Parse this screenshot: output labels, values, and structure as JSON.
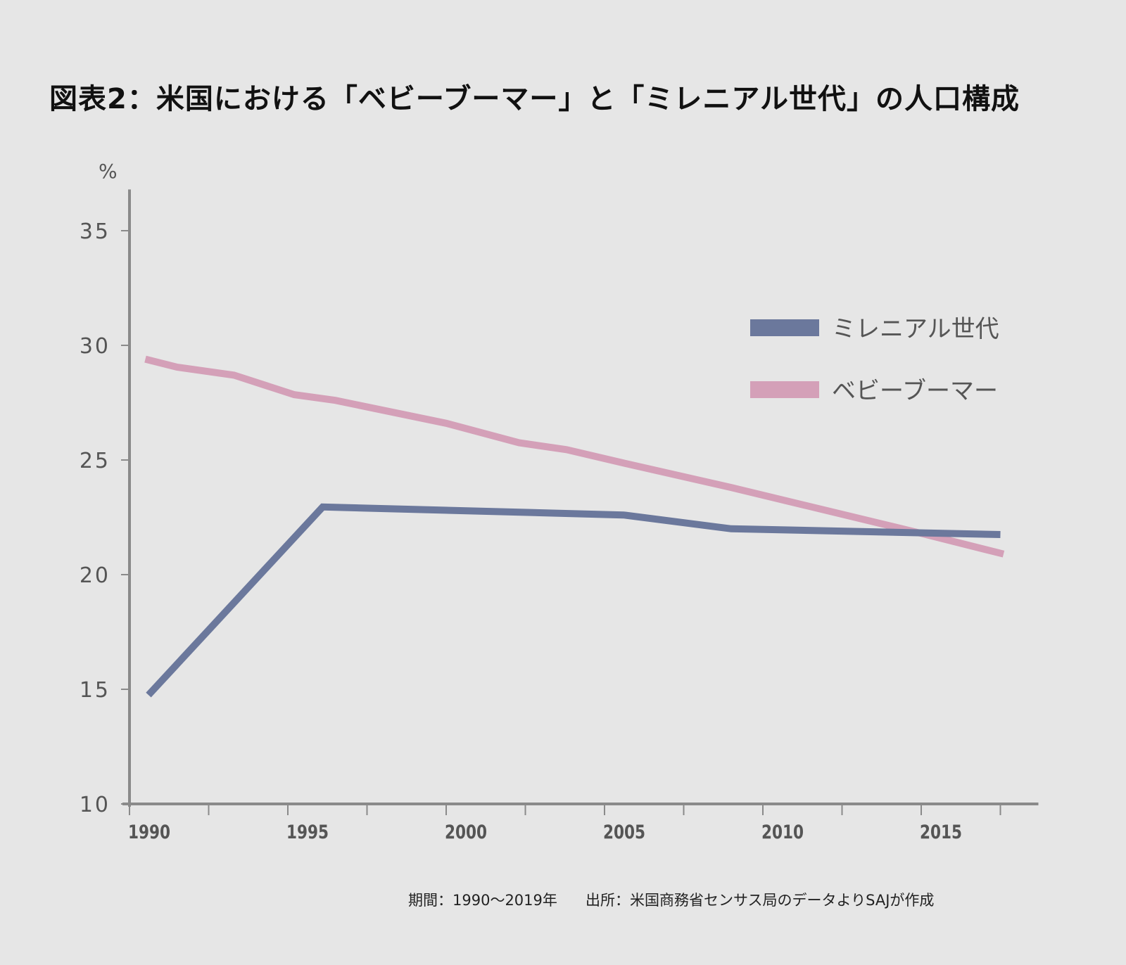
{
  "chart_data": {
    "type": "line",
    "title": "図表2：米国における「ベビーブーマー」と「ミレニアル世代」の人口構成",
    "ylabel": "%",
    "xlabel": "",
    "xlim": [
      1990,
      2018.7
    ],
    "ylim": [
      10,
      36.8
    ],
    "x_ticks": [
      1990,
      1995,
      2000,
      2005,
      2010,
      2015
    ],
    "x_minor_ticks": [
      1992.5,
      1997.5,
      2002.5,
      2007.5,
      2012.5,
      2017.5
    ],
    "y_ticks": [
      10,
      15,
      20,
      25,
      30,
      35
    ],
    "grid": false,
    "legend_placement": "right",
    "series": [
      {
        "name": "ミレニアル世代",
        "color": "#6b789c",
        "x": [
          1990.6,
          1996.1,
          2005.6,
          2009.0,
          2017.5
        ],
        "y": [
          14.75,
          22.95,
          22.6,
          22.0,
          21.75
        ]
      },
      {
        "name": "ベビーブーマー",
        "color": "#d4a0b8",
        "x": [
          1990.5,
          1991.5,
          1993.3,
          1995.2,
          1996.5,
          2000.0,
          2002.3,
          2003.8,
          2005.5,
          2009.0,
          2011.4,
          2015.0,
          2017.6
        ],
        "y": [
          29.4,
          29.05,
          28.7,
          27.85,
          27.6,
          26.6,
          25.75,
          25.45,
          24.9,
          23.8,
          23.0,
          21.8,
          20.9
        ]
      }
    ]
  },
  "footnote": {
    "period": "期間：1990〜2019年",
    "source": "出所：米国商務省センサス局のデータよりSAJが作成"
  }
}
